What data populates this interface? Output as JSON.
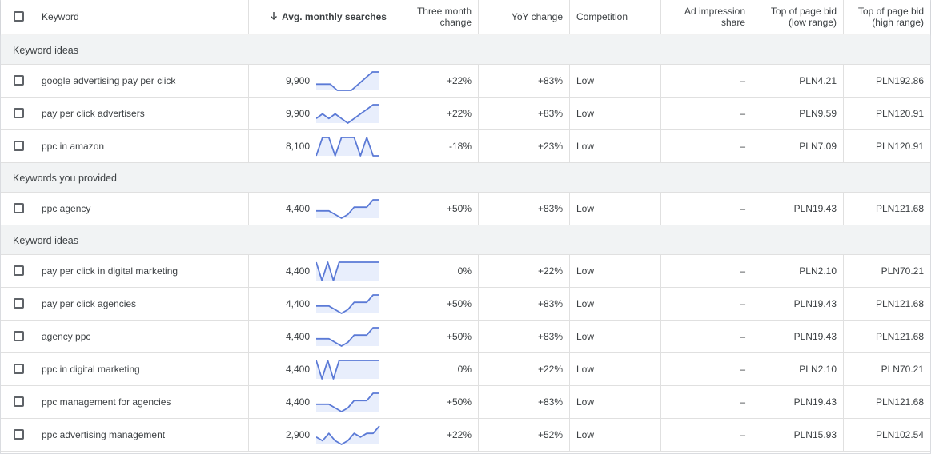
{
  "header": {
    "keyword": "Keyword",
    "avg": "Avg. monthly searches",
    "three_month": [
      "Three month",
      "change"
    ],
    "yoy": "YoY change",
    "competition": "Competition",
    "ad_impression": [
      "Ad impression",
      "share"
    ],
    "bid_low": [
      "Top of page bid",
      "(low range)"
    ],
    "bid_high": [
      "Top of page bid",
      "(high range)"
    ]
  },
  "colors": {
    "spark_line": "#5b7ad6",
    "spark_fill": "#e8eefc",
    "group_bg": "#f1f3f4",
    "border": "#e0e0e0"
  },
  "rows": [
    {
      "type": "group",
      "label": "Keyword ideas"
    },
    {
      "type": "kw",
      "keyword": "google advertising pay per click",
      "avg": "9,900",
      "three_month": "+22%",
      "yoy": "+83%",
      "competition": "Low",
      "ais": "–",
      "low": "PLN4.21",
      "high": "PLN192.86",
      "trend": [
        2,
        2,
        2,
        1,
        1,
        1,
        2,
        3,
        4,
        4
      ]
    },
    {
      "type": "kw",
      "keyword": "pay per click advertisers",
      "avg": "9,900",
      "three_month": "+22%",
      "yoy": "+83%",
      "competition": "Low",
      "ais": "–",
      "low": "PLN9.59",
      "high": "PLN120.91",
      "trend": [
        2,
        3,
        2,
        3,
        2,
        1,
        2,
        3,
        4,
        5,
        5
      ]
    },
    {
      "type": "kw",
      "keyword": "ppc in amazon",
      "avg": "8,100",
      "three_month": "-18%",
      "yoy": "+23%",
      "competition": "Low",
      "ais": "–",
      "low": "PLN7.09",
      "high": "PLN120.91",
      "trend": [
        1,
        4,
        4,
        1,
        4,
        4,
        4,
        1,
        4,
        1,
        1
      ]
    },
    {
      "type": "group",
      "label": "Keywords you provided"
    },
    {
      "type": "kw",
      "keyword": "ppc agency",
      "avg": "4,400",
      "three_month": "+50%",
      "yoy": "+83%",
      "competition": "Low",
      "ais": "–",
      "low": "PLN19.43",
      "high": "PLN121.68",
      "trend": [
        2,
        2,
        2,
        1,
        0,
        1,
        3,
        3,
        3,
        5,
        5
      ]
    },
    {
      "type": "group",
      "label": "Keyword ideas"
    },
    {
      "type": "kw",
      "keyword": "pay per click in digital marketing",
      "avg": "4,400",
      "three_month": "0%",
      "yoy": "+22%",
      "competition": "Low",
      "ais": "–",
      "low": "PLN2.10",
      "high": "PLN70.21",
      "trend": [
        4,
        1,
        4,
        1,
        4,
        4,
        4,
        4,
        4,
        4,
        4,
        4
      ]
    },
    {
      "type": "kw",
      "keyword": "pay per click agencies",
      "avg": "4,400",
      "three_month": "+50%",
      "yoy": "+83%",
      "competition": "Low",
      "ais": "–",
      "low": "PLN19.43",
      "high": "PLN121.68",
      "trend": [
        2,
        2,
        2,
        1,
        0,
        1,
        3,
        3,
        3,
        5,
        5
      ]
    },
    {
      "type": "kw",
      "keyword": "agency ppc",
      "avg": "4,400",
      "three_month": "+50%",
      "yoy": "+83%",
      "competition": "Low",
      "ais": "–",
      "low": "PLN19.43",
      "high": "PLN121.68",
      "trend": [
        2,
        2,
        2,
        1,
        0,
        1,
        3,
        3,
        3,
        5,
        5
      ]
    },
    {
      "type": "kw",
      "keyword": "ppc in digital marketing",
      "avg": "4,400",
      "three_month": "0%",
      "yoy": "+22%",
      "competition": "Low",
      "ais": "–",
      "low": "PLN2.10",
      "high": "PLN70.21",
      "trend": [
        4,
        1,
        4,
        1,
        4,
        4,
        4,
        4,
        4,
        4,
        4,
        4
      ]
    },
    {
      "type": "kw",
      "keyword": "ppc management for agencies",
      "avg": "4,400",
      "three_month": "+50%",
      "yoy": "+83%",
      "competition": "Low",
      "ais": "–",
      "low": "PLN19.43",
      "high": "PLN121.68",
      "trend": [
        2,
        2,
        2,
        1,
        0,
        1,
        3,
        3,
        3,
        5,
        5
      ]
    },
    {
      "type": "kw",
      "keyword": "ppc advertising management",
      "avg": "2,900",
      "three_month": "+22%",
      "yoy": "+52%",
      "competition": "Low",
      "ais": "–",
      "low": "PLN15.93",
      "high": "PLN102.54",
      "trend": [
        2,
        1,
        3,
        1,
        0,
        1,
        3,
        2,
        3,
        3,
        5
      ]
    }
  ]
}
